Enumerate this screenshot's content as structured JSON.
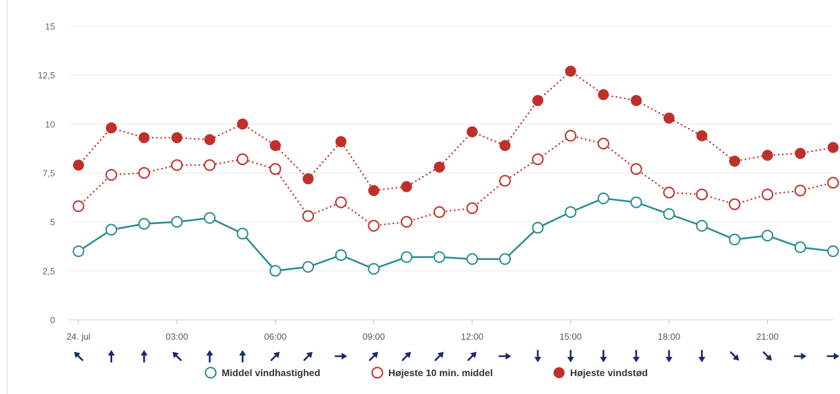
{
  "chart_data": {
    "type": "line",
    "title": "",
    "xlabel": "",
    "ylabel": "",
    "ylim": [
      0,
      15
    ],
    "y_ticks": [
      "0",
      "2,5",
      "5",
      "7,5",
      "10",
      "12,5",
      "15"
    ],
    "grid": true,
    "legend_position": "bottom",
    "x_tick_labels": [
      "24. jul",
      "03:00",
      "06:00",
      "09:00",
      "12:00",
      "15:00",
      "18:00",
      "21:00"
    ],
    "x_tick_hours": [
      0,
      3,
      6,
      9,
      12,
      15,
      18,
      21
    ],
    "hours": [
      0,
      1,
      2,
      3,
      4,
      5,
      6,
      7,
      8,
      9,
      10,
      11,
      12,
      13,
      14,
      15,
      16,
      17,
      18,
      19,
      20,
      21,
      22,
      23
    ],
    "series": [
      {
        "name": "Middel vindhastighed",
        "color": "#2a8c93",
        "marker": "open-circle",
        "line": "solid",
        "values": [
          3.5,
          4.6,
          4.9,
          5.0,
          5.2,
          4.4,
          2.5,
          2.7,
          3.3,
          2.6,
          3.2,
          3.2,
          3.1,
          3.1,
          4.7,
          5.5,
          6.2,
          6.0,
          5.4,
          4.8,
          4.1,
          4.3,
          3.7,
          3.5
        ]
      },
      {
        "name": "Højeste 10 min. middel",
        "color": "#c0302b",
        "marker": "open-circle",
        "line": "dotted",
        "values": [
          5.8,
          7.4,
          7.5,
          7.9,
          7.9,
          8.2,
          7.7,
          5.3,
          6.0,
          4.8,
          5.0,
          5.5,
          5.7,
          7.1,
          8.2,
          9.4,
          9.0,
          7.7,
          6.5,
          6.4,
          5.9,
          6.4,
          6.6,
          7.0
        ]
      },
      {
        "name": "Højeste vindstød",
        "color": "#c0302b",
        "marker": "filled-circle",
        "line": "dotted",
        "values": [
          7.9,
          9.8,
          9.3,
          9.3,
          9.2,
          10.0,
          8.9,
          7.2,
          9.1,
          6.6,
          6.8,
          7.8,
          9.6,
          8.9,
          11.2,
          12.7,
          11.5,
          11.2,
          10.3,
          9.4,
          8.1,
          8.4,
          8.5,
          8.8
        ]
      }
    ],
    "wind_direction_arrows": {
      "color": "#1a2a6c",
      "angles_deg": [
        315,
        0,
        0,
        315,
        0,
        0,
        45,
        45,
        90,
        45,
        45,
        45,
        45,
        90,
        180,
        180,
        180,
        180,
        180,
        180,
        135,
        135,
        90,
        90
      ]
    }
  }
}
